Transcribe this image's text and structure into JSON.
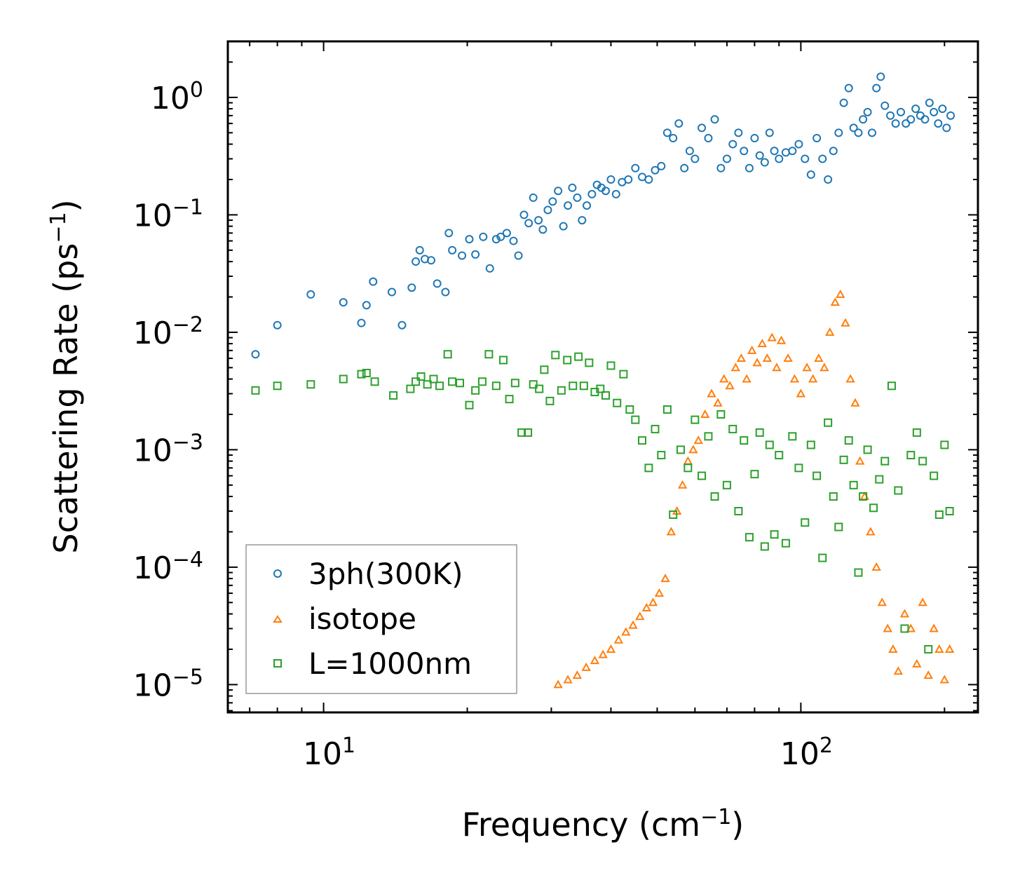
{
  "chart_data": {
    "type": "scatter",
    "title": "",
    "xscale": "log",
    "yscale": "log",
    "xlabel": "Frequency (cm",
    "xlabel_exponent": "−1",
    "xlabel_suffix": ")",
    "ylabel": "Scattering Rate (ps",
    "ylabel_exponent": "−1",
    "ylabel_suffix": ")",
    "xlim": [
      6.3,
      235
    ],
    "ylim": [
      5.8e-06,
      3.0
    ],
    "xticks": [
      {
        "value": 10,
        "base": "10",
        "exp": "1"
      },
      {
        "value": 100,
        "base": "10",
        "exp": "2"
      }
    ],
    "yticks": [
      {
        "value": 1,
        "base": "10",
        "exp": "0"
      },
      {
        "value": 0.1,
        "base": "10",
        "exp": "−1"
      },
      {
        "value": 0.01,
        "base": "10",
        "exp": "−2"
      },
      {
        "value": 0.001,
        "base": "10",
        "exp": "−3"
      },
      {
        "value": 0.0001,
        "base": "10",
        "exp": "−4"
      },
      {
        "value": 1e-05,
        "base": "10",
        "exp": "−5"
      }
    ],
    "legend_position": "bottom-left",
    "series": [
      {
        "name": "3ph(300K)",
        "marker": "circle",
        "color": "#1f77b4",
        "x": [
          7.2,
          8.0,
          9.4,
          11.0,
          12.0,
          12.3,
          12.7,
          13.9,
          14.6,
          15.3,
          15.6,
          15.9,
          16.3,
          16.8,
          17.3,
          18.0,
          18.3,
          18.6,
          19.5,
          20.2,
          20.8,
          21.6,
          22.3,
          23.0,
          23.5,
          24.2,
          25.0,
          25.6,
          26.3,
          26.9,
          27.5,
          28.2,
          28.8,
          29.5,
          30.2,
          31.0,
          31.8,
          32.5,
          33.2,
          34.0,
          34.8,
          35.6,
          36.5,
          37.4,
          38.2,
          39.0,
          40.0,
          41.0,
          42.2,
          43.5,
          45.0,
          46.5,
          48.0,
          49.5,
          51.0,
          52.5,
          54.0,
          55.5,
          57.0,
          58.5,
          60.0,
          62.0,
          64.0,
          66.0,
          68.0,
          70.0,
          72.0,
          74.0,
          76.0,
          78.0,
          80.0,
          82.0,
          84.0,
          86.0,
          88.0,
          90.0,
          93.0,
          96.0,
          99.0,
          102.0,
          105.0,
          108.0,
          111.0,
          114.0,
          117.0,
          120.0,
          123.0,
          126.0,
          129.0,
          132.0,
          135.0,
          138.0,
          141.0,
          144.0,
          147.0,
          150.0,
          154.0,
          158.0,
          162.0,
          166.0,
          170.0,
          174.0,
          178.0,
          182.0,
          186.0,
          190.0,
          194.0,
          198.0,
          202.0,
          206.0
        ],
        "y": [
          0.0065,
          0.0115,
          0.021,
          0.018,
          0.012,
          0.017,
          0.027,
          0.022,
          0.0115,
          0.024,
          0.04,
          0.05,
          0.042,
          0.041,
          0.026,
          0.022,
          0.07,
          0.05,
          0.045,
          0.062,
          0.046,
          0.065,
          0.035,
          0.062,
          0.065,
          0.07,
          0.06,
          0.045,
          0.1,
          0.085,
          0.14,
          0.09,
          0.075,
          0.11,
          0.13,
          0.16,
          0.08,
          0.12,
          0.17,
          0.14,
          0.09,
          0.12,
          0.15,
          0.18,
          0.17,
          0.16,
          0.2,
          0.15,
          0.19,
          0.2,
          0.25,
          0.21,
          0.2,
          0.24,
          0.26,
          0.5,
          0.45,
          0.6,
          0.25,
          0.35,
          0.3,
          0.55,
          0.45,
          0.65,
          0.25,
          0.3,
          0.4,
          0.5,
          0.35,
          0.25,
          0.45,
          0.32,
          0.28,
          0.5,
          0.35,
          0.3,
          0.34,
          0.35,
          0.4,
          0.3,
          0.22,
          0.45,
          0.3,
          0.2,
          0.35,
          0.5,
          0.9,
          1.2,
          0.55,
          0.5,
          0.65,
          0.75,
          0.5,
          1.2,
          1.5,
          0.85,
          0.7,
          0.6,
          0.75,
          0.6,
          0.65,
          0.8,
          0.7,
          0.65,
          0.9,
          0.75,
          0.6,
          0.8,
          0.55,
          0.7
        ]
      },
      {
        "name": "isotope",
        "marker": "triangle",
        "color": "#ff7f0e",
        "x": [
          31.0,
          32.5,
          34.0,
          35.5,
          37.0,
          38.5,
          40.0,
          41.5,
          43.0,
          44.5,
          46.0,
          47.5,
          49.0,
          50.5,
          52.0,
          53.5,
          55.0,
          56.5,
          58.0,
          59.5,
          61.0,
          63.0,
          65.0,
          67.0,
          69.0,
          71.0,
          73.0,
          75.0,
          77.0,
          79.0,
          81.0,
          83.0,
          85.0,
          87.0,
          89.0,
          91.0,
          94.0,
          97.0,
          100.0,
          103.0,
          106.0,
          109.0,
          112.0,
          115.0,
          118.0,
          121.0,
          124.0,
          127.0,
          130.0,
          133.0,
          136.0,
          140.0,
          144.0,
          148.0,
          152.0,
          156.0,
          160.0,
          165.0,
          170.0,
          175.0,
          180.0,
          185.0,
          190.0,
          195.0,
          200.0,
          205.0
        ],
        "y": [
          1e-05,
          1.1e-05,
          1.2e-05,
          1.4e-05,
          1.6e-05,
          1.8e-05,
          2e-05,
          2.4e-05,
          2.8e-05,
          3.2e-05,
          3.8e-05,
          4.5e-05,
          5e-05,
          6e-05,
          8e-05,
          0.0002,
          0.0003,
          0.0005,
          0.0008,
          0.001,
          0.0012,
          0.002,
          0.003,
          0.0025,
          0.004,
          0.0035,
          0.005,
          0.006,
          0.004,
          0.007,
          0.0055,
          0.008,
          0.006,
          0.009,
          0.005,
          0.0085,
          0.006,
          0.004,
          0.003,
          0.005,
          0.004,
          0.006,
          0.005,
          0.01,
          0.018,
          0.021,
          0.012,
          0.004,
          0.0025,
          0.0008,
          0.0004,
          0.0002,
          0.0001,
          5e-05,
          3e-05,
          2e-05,
          1.3e-05,
          4e-05,
          3e-05,
          1.5e-05,
          5e-05,
          1.2e-05,
          3e-05,
          2e-05,
          1.1e-05,
          2e-05
        ]
      },
      {
        "name": "L=1000nm",
        "marker": "square",
        "color": "#2ca02c",
        "x": [
          7.2,
          8.0,
          9.4,
          11.0,
          12.0,
          12.3,
          12.8,
          14.0,
          15.2,
          15.6,
          16.0,
          16.5,
          17.0,
          17.5,
          18.2,
          18.6,
          19.3,
          20.2,
          20.8,
          21.5,
          22.2,
          23.0,
          23.8,
          24.5,
          25.2,
          26.0,
          26.8,
          27.5,
          28.3,
          29.0,
          29.8,
          30.6,
          31.5,
          32.4,
          33.3,
          34.2,
          35.1,
          36.0,
          37.0,
          38.0,
          39.0,
          40.0,
          41.2,
          42.5,
          43.8,
          45.0,
          46.5,
          48.0,
          49.5,
          51.0,
          52.5,
          54.0,
          56.0,
          58.0,
          60.0,
          62.0,
          64.0,
          66.0,
          68.0,
          70.0,
          72.0,
          74.0,
          76.0,
          78.0,
          80.0,
          82.0,
          84.0,
          86.0,
          88.0,
          90.0,
          93.0,
          96.0,
          99.0,
          102.0,
          105.0,
          108.0,
          111.0,
          114.0,
          117.0,
          120.0,
          123.0,
          126.0,
          129.0,
          132.0,
          135.0,
          138.0,
          142.0,
          146.0,
          150.0,
          155.0,
          160.0,
          165.0,
          170.0,
          175.0,
          180.0,
          185.0,
          190.0,
          195.0,
          200.0,
          205.0
        ],
        "y": [
          0.0032,
          0.0035,
          0.0036,
          0.004,
          0.0044,
          0.0045,
          0.0038,
          0.0029,
          0.0033,
          0.0038,
          0.0042,
          0.0036,
          0.004,
          0.0035,
          0.0065,
          0.0038,
          0.0037,
          0.0024,
          0.0032,
          0.0038,
          0.0065,
          0.0035,
          0.0058,
          0.0027,
          0.0037,
          0.0014,
          0.0014,
          0.0036,
          0.0033,
          0.0048,
          0.0026,
          0.0064,
          0.0032,
          0.0058,
          0.0035,
          0.0062,
          0.0035,
          0.0055,
          0.0031,
          0.0033,
          0.0029,
          0.0052,
          0.0025,
          0.0044,
          0.0022,
          0.0018,
          0.0012,
          0.0007,
          0.0015,
          0.0009,
          0.0022,
          0.00028,
          0.001,
          0.0007,
          0.0018,
          0.0006,
          0.0013,
          0.0004,
          0.002,
          0.0005,
          0.0015,
          0.0003,
          0.0012,
          0.00018,
          0.00062,
          0.0014,
          0.00015,
          0.0011,
          0.00019,
          0.0009,
          0.00016,
          0.0013,
          0.0007,
          0.00024,
          0.0011,
          0.0006,
          0.00012,
          0.0017,
          0.0004,
          0.00022,
          0.00082,
          0.0012,
          0.0005,
          9e-05,
          0.0004,
          0.001,
          0.00032,
          0.00056,
          0.0008,
          0.0035,
          0.00045,
          3e-05,
          0.0009,
          0.0014,
          0.0008,
          2e-05,
          0.0006,
          0.00028,
          0.0011,
          0.0003
        ]
      }
    ]
  }
}
